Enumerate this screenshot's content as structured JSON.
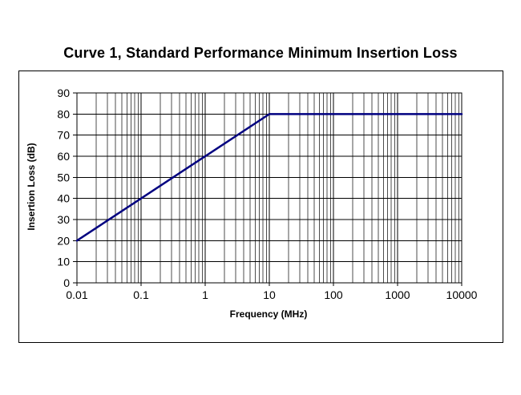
{
  "page": {
    "background": "#ffffff"
  },
  "chart_data": {
    "type": "line",
    "title": "Curve 1, Standard Performance Minimum Insertion Loss",
    "xlabel": "Frequency (MHz)",
    "ylabel": "Insertion Loss (dB)",
    "x_scale": "log",
    "xlim": [
      0.01,
      10000
    ],
    "ylim": [
      0,
      90
    ],
    "x_ticks": [
      0.01,
      0.1,
      1,
      10,
      100,
      1000,
      10000
    ],
    "x_tick_labels": [
      "0.01",
      "0.1",
      "1",
      "10",
      "100",
      "1000",
      "10000"
    ],
    "y_ticks": [
      0,
      10,
      20,
      30,
      40,
      50,
      60,
      70,
      80,
      90
    ],
    "grid": "x-major+x-minor-log, y-major",
    "legend": "none",
    "line_color": "#000080",
    "line_width": 2.5,
    "series": [
      {
        "name": "Curve 1",
        "x": [
          0.01,
          10,
          10000
        ],
        "y": [
          20,
          80,
          80
        ]
      }
    ]
  }
}
